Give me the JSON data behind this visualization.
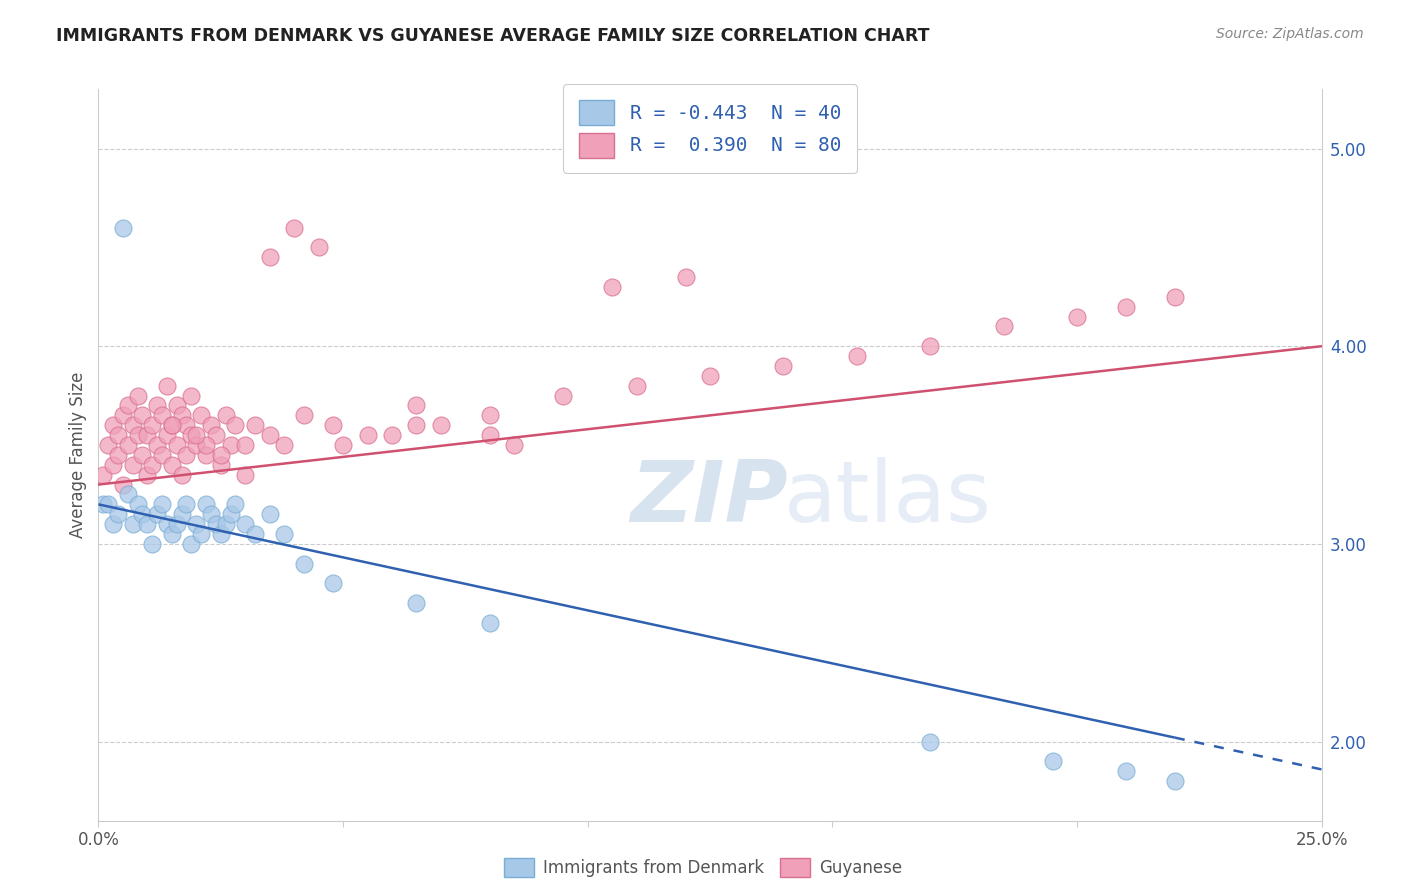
{
  "title": "IMMIGRANTS FROM DENMARK VS GUYANESE AVERAGE FAMILY SIZE CORRELATION CHART",
  "source": "Source: ZipAtlas.com",
  "ylabel": "Average Family Size",
  "xlim": [
    0.0,
    0.25
  ],
  "ylim": [
    1.6,
    5.3
  ],
  "right_yticks": [
    2.0,
    3.0,
    4.0,
    5.0
  ],
  "right_yticklabels": [
    "2.00",
    "3.00",
    "4.00",
    "5.00"
  ],
  "xtick_positions": [
    0.0,
    0.05,
    0.1,
    0.15,
    0.2,
    0.25
  ],
  "xtick_labels": [
    "0.0%",
    "",
    "",
    "",
    "",
    "25.0%"
  ],
  "denmark_color": "#a8c8e8",
  "denmark_edge": "#7aadd4",
  "guyanese_color": "#f0a0b8",
  "guyanese_edge": "#d87090",
  "denmark_line_color": "#3060b0",
  "guyanese_line_color": "#d05070",
  "watermark_text": "ZIPatlas",
  "watermark_color": "#c8d8ec",
  "grid_color": "#cccccc",
  "title_color": "#222222",
  "source_color": "#888888",
  "tick_color": "#3060b0",
  "ytick_label_color": "#555555",
  "legend_edge_color": "#cccccc",
  "legend_text_color": "#3060b0",
  "denmark_R": -0.443,
  "denmark_N": 40,
  "guyanese_R": 0.39,
  "guyanese_N": 80,
  "denmark_x": [
    0.001,
    0.002,
    0.003,
    0.004,
    0.005,
    0.006,
    0.007,
    0.008,
    0.009,
    0.01,
    0.011,
    0.012,
    0.013,
    0.014,
    0.015,
    0.016,
    0.017,
    0.018,
    0.019,
    0.02,
    0.021,
    0.022,
    0.023,
    0.024,
    0.025,
    0.026,
    0.027,
    0.028,
    0.03,
    0.032,
    0.035,
    0.038,
    0.042,
    0.048,
    0.065,
    0.08,
    0.17,
    0.195,
    0.21,
    0.22
  ],
  "denmark_y": [
    3.2,
    3.2,
    3.1,
    3.15,
    4.6,
    3.25,
    3.1,
    3.2,
    3.15,
    3.1,
    3.0,
    3.15,
    3.2,
    3.1,
    3.05,
    3.1,
    3.15,
    3.2,
    3.0,
    3.1,
    3.05,
    3.2,
    3.15,
    3.1,
    3.05,
    3.1,
    3.15,
    3.2,
    3.1,
    3.05,
    3.15,
    3.05,
    2.9,
    2.8,
    2.7,
    2.6,
    2.0,
    1.9,
    1.85,
    1.8
  ],
  "guyanese_x": [
    0.001,
    0.002,
    0.003,
    0.003,
    0.004,
    0.004,
    0.005,
    0.005,
    0.006,
    0.006,
    0.007,
    0.007,
    0.008,
    0.008,
    0.009,
    0.009,
    0.01,
    0.01,
    0.011,
    0.011,
    0.012,
    0.012,
    0.013,
    0.013,
    0.014,
    0.014,
    0.015,
    0.015,
    0.016,
    0.016,
    0.017,
    0.017,
    0.018,
    0.018,
    0.019,
    0.019,
    0.02,
    0.021,
    0.022,
    0.023,
    0.024,
    0.025,
    0.026,
    0.027,
    0.028,
    0.03,
    0.032,
    0.035,
    0.038,
    0.042,
    0.048,
    0.055,
    0.065,
    0.08,
    0.095,
    0.11,
    0.125,
    0.14,
    0.155,
    0.17,
    0.185,
    0.2,
    0.21,
    0.22,
    0.105,
    0.12,
    0.065,
    0.08,
    0.05,
    0.06,
    0.07,
    0.085,
    0.04,
    0.045,
    0.035,
    0.03,
    0.025,
    0.022,
    0.02,
    0.015
  ],
  "guyanese_y": [
    3.35,
    3.5,
    3.4,
    3.6,
    3.45,
    3.55,
    3.3,
    3.65,
    3.5,
    3.7,
    3.4,
    3.6,
    3.55,
    3.75,
    3.45,
    3.65,
    3.35,
    3.55,
    3.4,
    3.6,
    3.5,
    3.7,
    3.45,
    3.65,
    3.8,
    3.55,
    3.4,
    3.6,
    3.5,
    3.7,
    3.35,
    3.65,
    3.45,
    3.6,
    3.55,
    3.75,
    3.5,
    3.65,
    3.45,
    3.6,
    3.55,
    3.4,
    3.65,
    3.5,
    3.6,
    3.5,
    3.6,
    3.55,
    3.5,
    3.65,
    3.6,
    3.55,
    3.7,
    3.65,
    3.75,
    3.8,
    3.85,
    3.9,
    3.95,
    4.0,
    4.1,
    4.15,
    4.2,
    4.25,
    4.3,
    4.35,
    3.6,
    3.55,
    3.5,
    3.55,
    3.6,
    3.5,
    4.6,
    4.5,
    4.45,
    3.35,
    3.45,
    3.5,
    3.55,
    3.6
  ]
}
